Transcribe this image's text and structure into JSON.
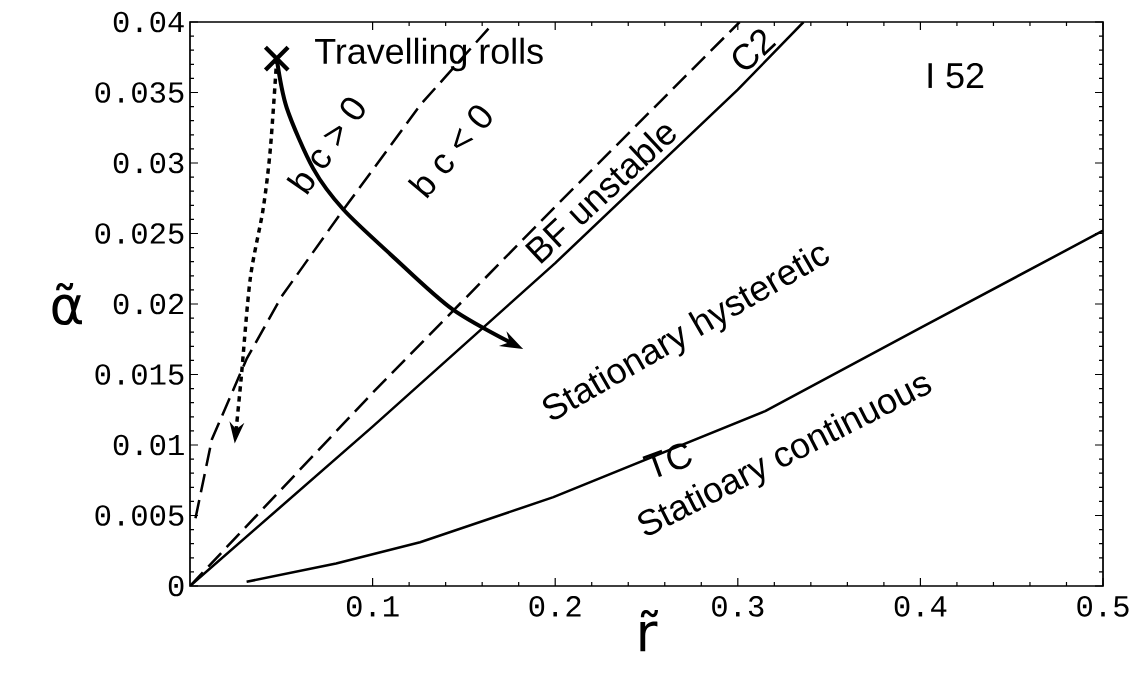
{
  "chart_data": {
    "type": "line",
    "xlabel": "r̃",
    "ylabel": "α̃",
    "xlim": [
      0,
      0.5
    ],
    "ylim": [
      0,
      0.04
    ],
    "xticks": [
      0.1,
      0.2,
      0.3,
      0.4,
      0.5
    ],
    "yticks": [
      0,
      0.005,
      0.01,
      0.015,
      0.02,
      0.025,
      0.03,
      0.035,
      0.04
    ],
    "grid": false,
    "series": [
      {
        "color": "#000000",
        "line_style": "solid",
        "x": [
          0,
          0.1,
          0.2,
          0.3,
          0.336
        ],
        "values": [
          0,
          0.0113,
          0.0229,
          0.0352,
          0.04
        ]
      },
      {
        "color": "#000000",
        "line_style": "dashed",
        "x": [
          0,
          0.1,
          0.2,
          0.301
        ],
        "values": [
          0,
          0.0137,
          0.0269,
          0.04
        ]
      },
      {
        "color": "#000000",
        "line_style": "dashed",
        "x": [
          0.003,
          0.012,
          0.031,
          0.05,
          0.084,
          0.1,
          0.126,
          0.166
        ],
        "values": [
          0.0048,
          0.0104,
          0.0161,
          0.0205,
          0.0267,
          0.0295,
          0.0341,
          0.0399
        ]
      },
      {
        "color": "#000000",
        "line_style": "solid",
        "x": [
          0.031,
          0.08,
          0.126,
          0.199,
          0.315,
          0.4,
          0.5
        ],
        "values": [
          0.0003,
          0.0016,
          0.0031,
          0.0063,
          0.0124,
          0.0183,
          0.0252
        ]
      },
      {
        "type": "scatter",
        "marker": "cross",
        "color": "#000000",
        "x": [
          0.0475
        ],
        "values": [
          0.0374
        ]
      }
    ],
    "annotations": [
      "Travelling  rolls",
      "I 52",
      "b c > 0",
      "b c < 0",
      "BF  unstable",
      "C2",
      "Stationary  hysteretic",
      "TC",
      "Statioary  continuous"
    ]
  }
}
